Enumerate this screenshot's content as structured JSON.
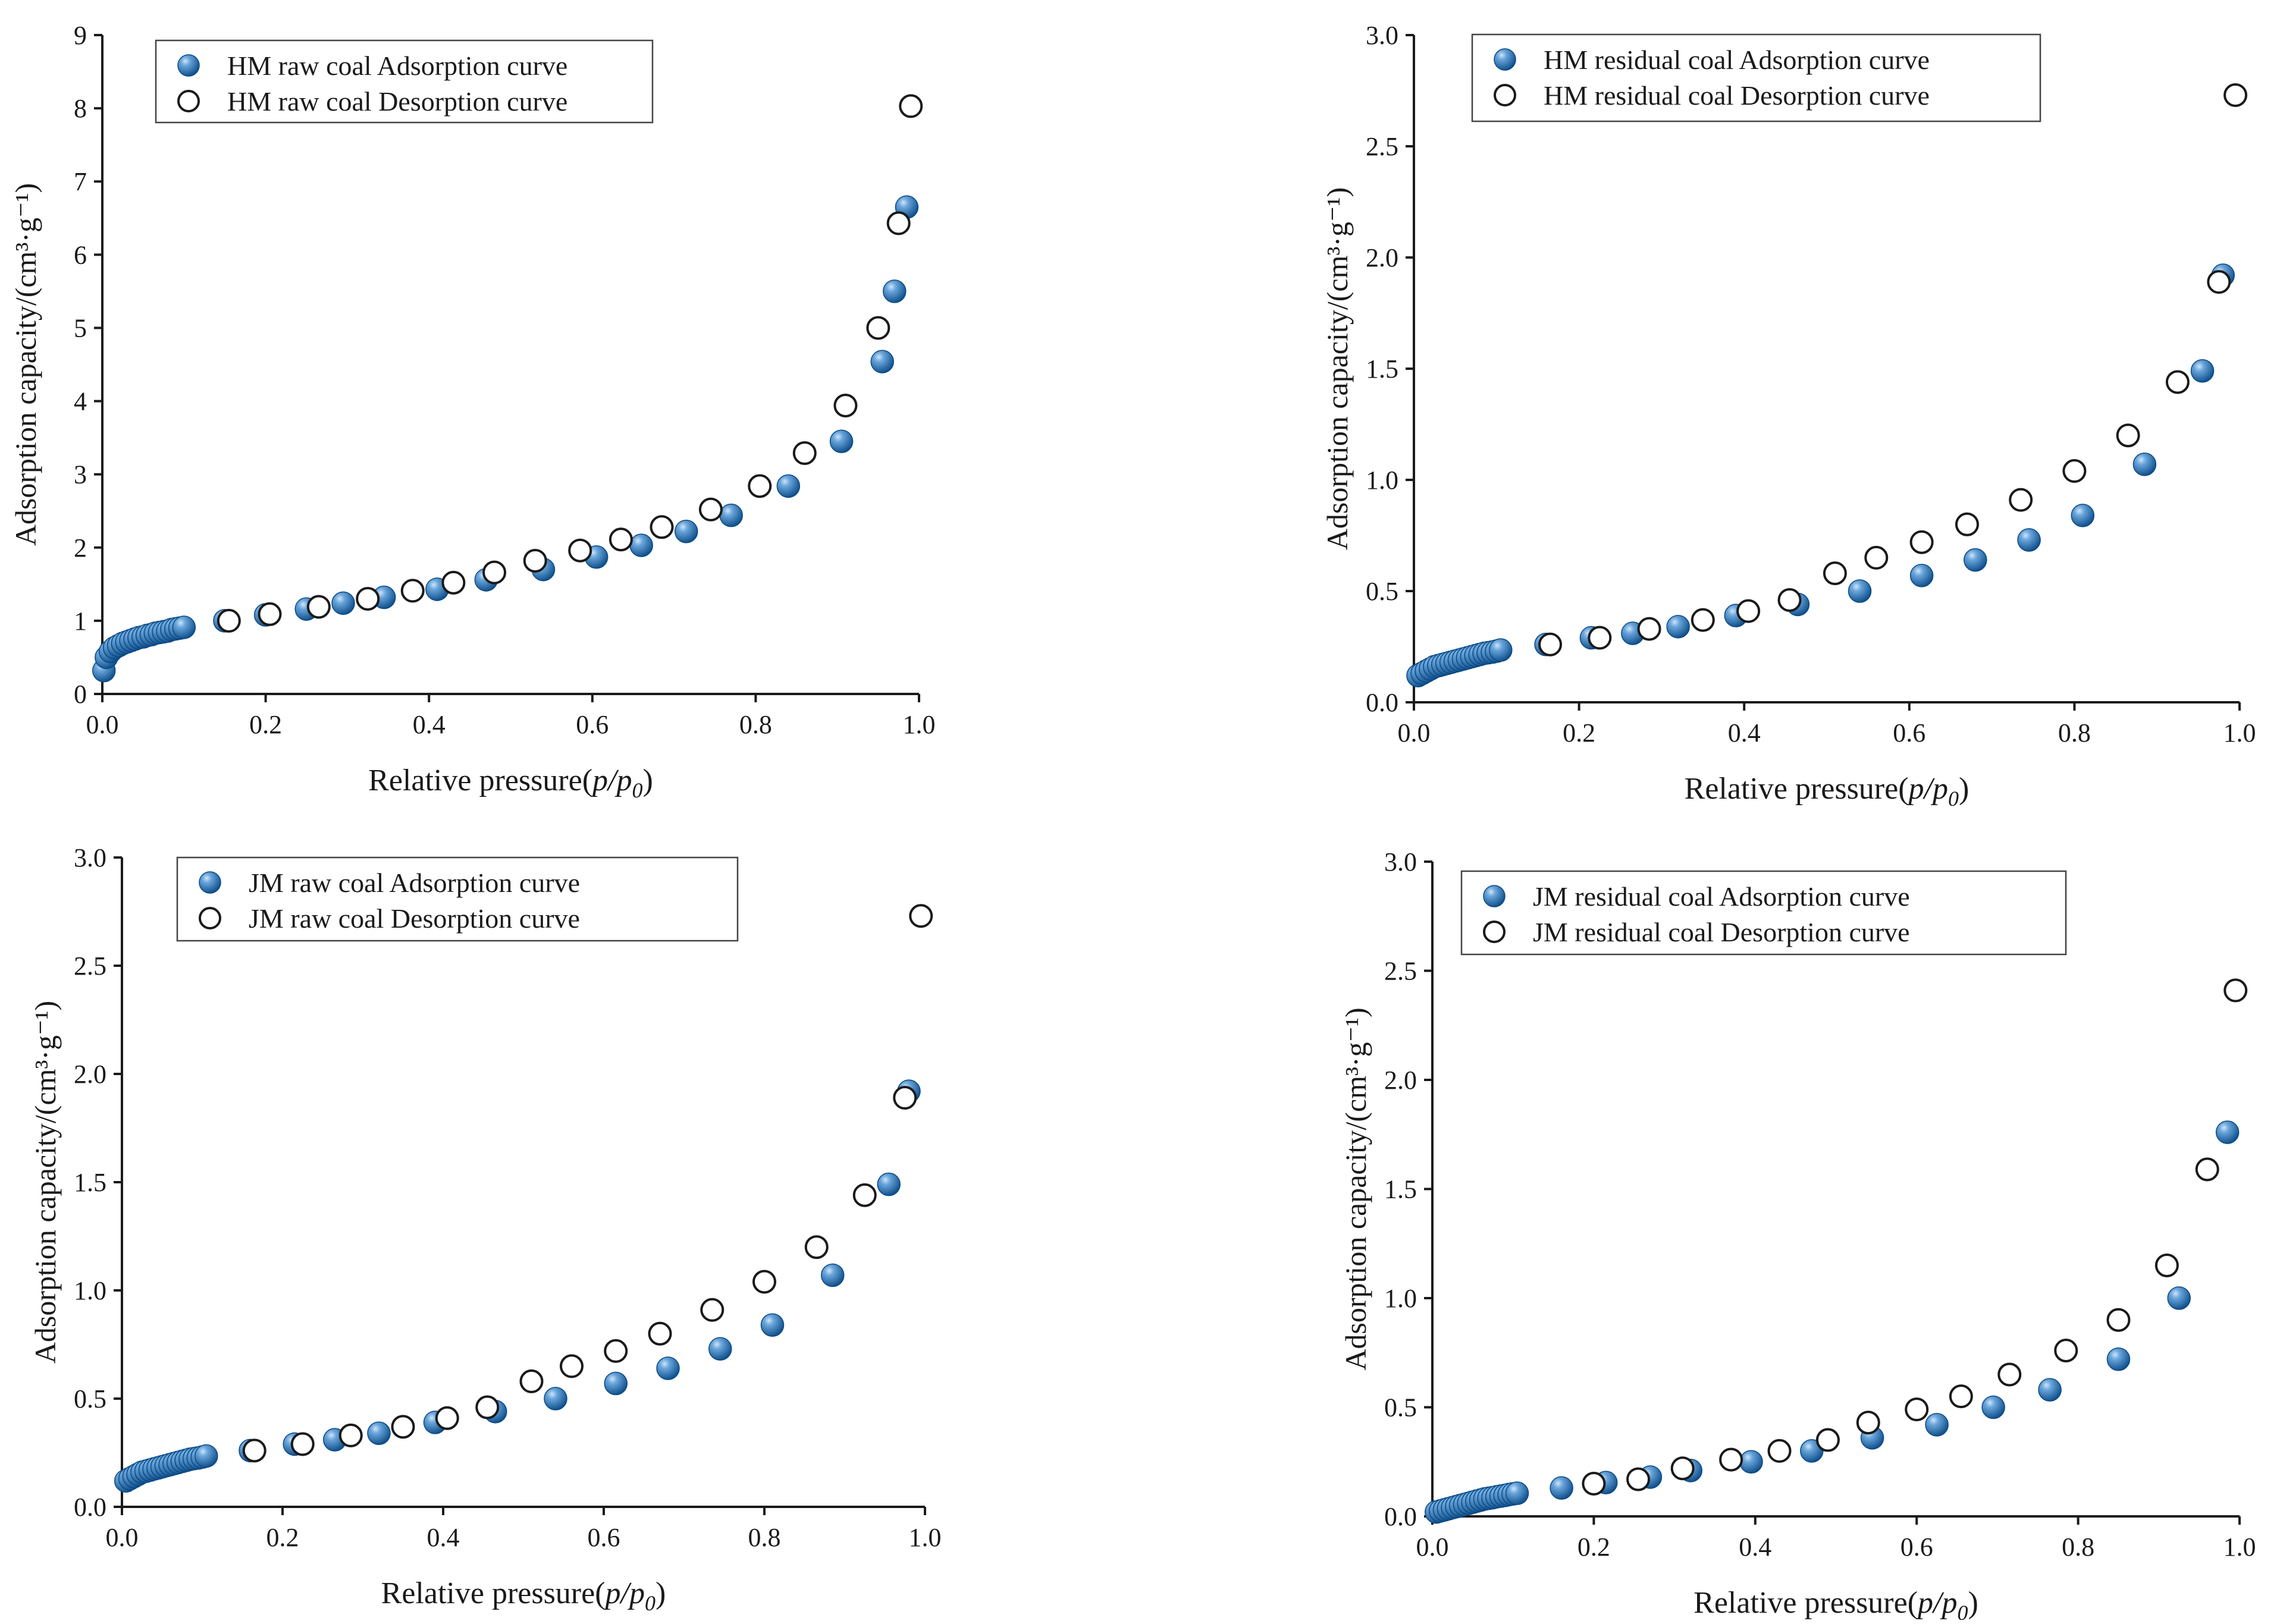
{
  "colors": {
    "adsorption_fill_dark": "#0a4a86",
    "adsorption_fill_light": "#6aa6dc",
    "desorption_stroke": "#1a1a1a",
    "axis": "#1a1a1a"
  },
  "chart_data": [
    {
      "type": "scatter",
      "panel": "top-left",
      "xlabel": "Relative pressure(p/p0)",
      "ylabel": "Adsorption capacity/(cm³·g⁻¹)",
      "xlim": [
        0,
        1.0
      ],
      "ylim": [
        0,
        9
      ],
      "xticks": [
        0.0,
        0.2,
        0.4,
        0.6,
        0.8,
        1.0
      ],
      "xtick_labels": [
        "0.0",
        "0.2",
        "0.4",
        "0.6",
        "0.8",
        "1.0"
      ],
      "yticks": [
        0,
        1,
        2,
        3,
        4,
        5,
        6,
        7,
        8,
        9
      ],
      "ytick_labels": [
        "0",
        "1",
        "2",
        "3",
        "4",
        "5",
        "6",
        "7",
        "8",
        "9"
      ],
      "legend_position": "top-left",
      "series": [
        {
          "name": "HM raw coal Adsorption curve",
          "marker": "filled",
          "x": [
            0.002,
            0.005,
            0.01,
            0.015,
            0.02,
            0.025,
            0.03,
            0.035,
            0.04,
            0.045,
            0.05,
            0.055,
            0.06,
            0.065,
            0.07,
            0.075,
            0.08,
            0.085,
            0.09,
            0.095,
            0.1,
            0.15,
            0.2,
            0.25,
            0.295,
            0.345,
            0.41,
            0.47,
            0.54,
            0.605,
            0.66,
            0.715,
            0.77,
            0.84,
            0.905,
            0.955,
            0.97,
            0.985
          ],
          "y": [
            0.32,
            0.5,
            0.58,
            0.63,
            0.66,
            0.69,
            0.71,
            0.73,
            0.75,
            0.77,
            0.78,
            0.8,
            0.81,
            0.83,
            0.84,
            0.85,
            0.86,
            0.88,
            0.89,
            0.9,
            0.91,
            1.0,
            1.08,
            1.16,
            1.24,
            1.32,
            1.43,
            1.56,
            1.7,
            1.87,
            2.03,
            2.22,
            2.44,
            2.84,
            3.45,
            4.54,
            5.5,
            6.65
          ]
        },
        {
          "name": "HM raw coal Desorption curve",
          "marker": "open",
          "x": [
            0.155,
            0.205,
            0.265,
            0.325,
            0.38,
            0.43,
            0.48,
            0.53,
            0.585,
            0.635,
            0.685,
            0.745,
            0.805,
            0.86,
            0.91,
            0.95,
            0.975,
            0.99
          ],
          "y": [
            1.0,
            1.09,
            1.19,
            1.3,
            1.41,
            1.52,
            1.66,
            1.82,
            1.96,
            2.11,
            2.28,
            2.52,
            2.84,
            3.29,
            3.94,
            5.0,
            6.43,
            8.03
          ]
        }
      ]
    },
    {
      "type": "scatter",
      "panel": "top-right",
      "xlabel": "Relative pressure(p/p0)",
      "ylabel": "Adsorption capacity/(cm³·g⁻¹)",
      "xlim": [
        0,
        1.0
      ],
      "ylim": [
        0,
        3.0
      ],
      "xticks": [
        0.0,
        0.2,
        0.4,
        0.6,
        0.8,
        1.0
      ],
      "xtick_labels": [
        "0.0",
        "0.2",
        "0.4",
        "0.6",
        "0.8",
        "1.0"
      ],
      "yticks": [
        0.0,
        0.5,
        1.0,
        1.5,
        2.0,
        2.5,
        3.0
      ],
      "ytick_labels": [
        "0.0",
        "0.5",
        "1.0",
        "1.5",
        "2.0",
        "2.5",
        "3.0"
      ],
      "legend_position": "top-center",
      "series": [
        {
          "name": "HM residual coal Adsorption curve",
          "marker": "filled",
          "x": [
            0.005,
            0.01,
            0.015,
            0.02,
            0.025,
            0.03,
            0.035,
            0.04,
            0.045,
            0.05,
            0.055,
            0.06,
            0.065,
            0.07,
            0.075,
            0.08,
            0.085,
            0.09,
            0.095,
            0.1,
            0.105,
            0.16,
            0.215,
            0.265,
            0.32,
            0.39,
            0.465,
            0.54,
            0.615,
            0.68,
            0.745,
            0.81,
            0.885,
            0.955,
            0.98
          ],
          "y": [
            0.12,
            0.13,
            0.14,
            0.15,
            0.16,
            0.165,
            0.17,
            0.175,
            0.18,
            0.185,
            0.19,
            0.195,
            0.2,
            0.205,
            0.21,
            0.215,
            0.22,
            0.223,
            0.226,
            0.23,
            0.235,
            0.26,
            0.29,
            0.31,
            0.34,
            0.39,
            0.44,
            0.5,
            0.57,
            0.64,
            0.73,
            0.84,
            1.07,
            1.49,
            1.92
          ]
        },
        {
          "name": "HM residual coal Desorption curve",
          "marker": "open",
          "x": [
            0.165,
            0.225,
            0.285,
            0.35,
            0.405,
            0.455,
            0.51,
            0.56,
            0.615,
            0.67,
            0.735,
            0.8,
            0.865,
            0.925,
            0.975,
            0.995
          ],
          "y": [
            0.26,
            0.29,
            0.33,
            0.37,
            0.41,
            0.46,
            0.58,
            0.65,
            0.72,
            0.8,
            0.91,
            1.04,
            1.2,
            1.44,
            1.89,
            2.73
          ]
        }
      ]
    },
    {
      "type": "scatter",
      "panel": "bottom-left",
      "xlabel": "Relative pressure(p/p0)",
      "ylabel": "Adsorption capacity/(cm³·g⁻¹)",
      "xlim": [
        0,
        1.0
      ],
      "ylim": [
        0,
        3.0
      ],
      "xticks": [
        0.0,
        0.2,
        0.4,
        0.6,
        0.8,
        1.0
      ],
      "xtick_labels": [
        "0.0",
        "0.2",
        "0.4",
        "0.6",
        "0.8",
        "1.0"
      ],
      "yticks": [
        0.0,
        0.5,
        1.0,
        1.5,
        2.0,
        2.5,
        3.0
      ],
      "ytick_labels": [
        "0.0",
        "0.5",
        "1.0",
        "1.5",
        "2.0",
        "2.5",
        "3.0"
      ],
      "legend_position": "top-center",
      "series": [
        {
          "name": "JM raw coal Adsorption curve",
          "marker": "filled",
          "x": [
            0.005,
            0.01,
            0.015,
            0.02,
            0.025,
            0.03,
            0.035,
            0.04,
            0.045,
            0.05,
            0.055,
            0.06,
            0.065,
            0.07,
            0.075,
            0.08,
            0.085,
            0.09,
            0.095,
            0.1,
            0.105,
            0.16,
            0.215,
            0.265,
            0.32,
            0.39,
            0.465,
            0.54,
            0.615,
            0.68,
            0.745,
            0.81,
            0.885,
            0.955,
            0.98
          ],
          "y": [
            0.12,
            0.13,
            0.14,
            0.15,
            0.16,
            0.165,
            0.17,
            0.175,
            0.18,
            0.185,
            0.19,
            0.195,
            0.2,
            0.205,
            0.21,
            0.215,
            0.22,
            0.223,
            0.226,
            0.23,
            0.235,
            0.26,
            0.29,
            0.31,
            0.34,
            0.39,
            0.44,
            0.5,
            0.57,
            0.64,
            0.73,
            0.84,
            1.07,
            1.49,
            1.92
          ]
        },
        {
          "name": "JM raw coal Desorption curve",
          "marker": "open",
          "x": [
            0.165,
            0.225,
            0.285,
            0.35,
            0.405,
            0.455,
            0.51,
            0.56,
            0.615,
            0.67,
            0.735,
            0.8,
            0.865,
            0.925,
            0.975,
            0.995
          ],
          "y": [
            0.26,
            0.29,
            0.33,
            0.37,
            0.41,
            0.46,
            0.58,
            0.65,
            0.72,
            0.8,
            0.91,
            1.04,
            1.2,
            1.44,
            1.89,
            2.73
          ]
        }
      ]
    },
    {
      "type": "scatter",
      "panel": "bottom-right",
      "xlabel": "Relative pressure(p/p0)",
      "ylabel": "Adsorption capacity/(cm³·g⁻¹)",
      "xlim": [
        0,
        1.0
      ],
      "ylim": [
        0,
        3.0
      ],
      "xticks": [
        0.0,
        0.2,
        0.4,
        0.6,
        0.8,
        1.0
      ],
      "xtick_labels": [
        "0.0",
        "0.2",
        "0.4",
        "0.6",
        "0.8",
        "1.0"
      ],
      "yticks": [
        0.0,
        0.5,
        1.0,
        1.5,
        2.0,
        2.5,
        3.0
      ],
      "ytick_labels": [
        "0.0",
        "0.5",
        "1.0",
        "1.5",
        "2.0",
        "2.5",
        "3.0"
      ],
      "legend_position": "top-center",
      "series": [
        {
          "name": "JM residual coal Adsorption curve",
          "marker": "filled",
          "x": [
            0.005,
            0.01,
            0.015,
            0.02,
            0.025,
            0.03,
            0.035,
            0.04,
            0.045,
            0.05,
            0.055,
            0.06,
            0.065,
            0.07,
            0.075,
            0.08,
            0.085,
            0.09,
            0.095,
            0.1,
            0.105,
            0.16,
            0.215,
            0.27,
            0.32,
            0.395,
            0.47,
            0.545,
            0.625,
            0.695,
            0.765,
            0.85,
            0.925,
            0.985
          ],
          "y": [
            0.02,
            0.025,
            0.03,
            0.035,
            0.04,
            0.045,
            0.05,
            0.055,
            0.06,
            0.065,
            0.07,
            0.075,
            0.08,
            0.083,
            0.086,
            0.09,
            0.093,
            0.096,
            0.1,
            0.103,
            0.106,
            0.13,
            0.155,
            0.18,
            0.21,
            0.25,
            0.3,
            0.36,
            0.42,
            0.5,
            0.58,
            0.72,
            1.0,
            1.76
          ]
        },
        {
          "name": "JM residual coal Desorption curve",
          "marker": "open",
          "x": [
            0.2,
            0.255,
            0.31,
            0.37,
            0.43,
            0.49,
            0.54,
            0.6,
            0.655,
            0.715,
            0.785,
            0.85,
            0.91,
            0.96,
            0.995
          ],
          "y": [
            0.15,
            0.17,
            0.22,
            0.26,
            0.3,
            0.35,
            0.43,
            0.49,
            0.55,
            0.65,
            0.76,
            0.9,
            1.15,
            1.59,
            2.41
          ]
        }
      ]
    }
  ]
}
